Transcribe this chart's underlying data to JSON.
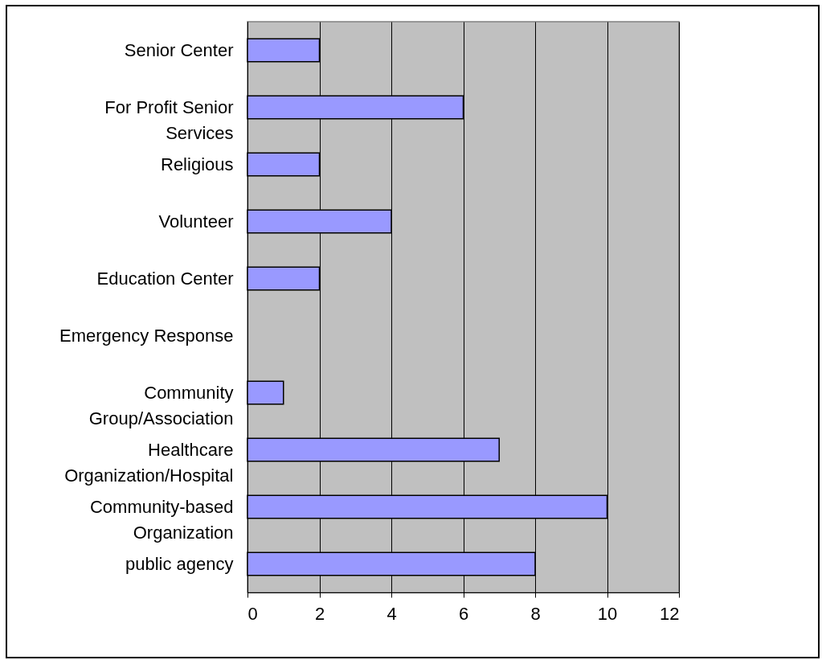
{
  "chart_data": {
    "type": "bar",
    "orientation": "horizontal",
    "categories": [
      "Senior Center",
      "For Profit Senior Services",
      "Religious",
      "Volunteer",
      "Education Center",
      "Emergency Response",
      "Community Group/Association",
      "Healthcare Organization/Hospital",
      "Community-based Organization",
      "public agency"
    ],
    "values": [
      2,
      6,
      2,
      4,
      2,
      0,
      1,
      7,
      10,
      8
    ],
    "color": "#9999ff",
    "xlim": [
      0,
      12
    ],
    "xticks": [
      0,
      2,
      4,
      6,
      8,
      10,
      12
    ],
    "grid": "x"
  }
}
